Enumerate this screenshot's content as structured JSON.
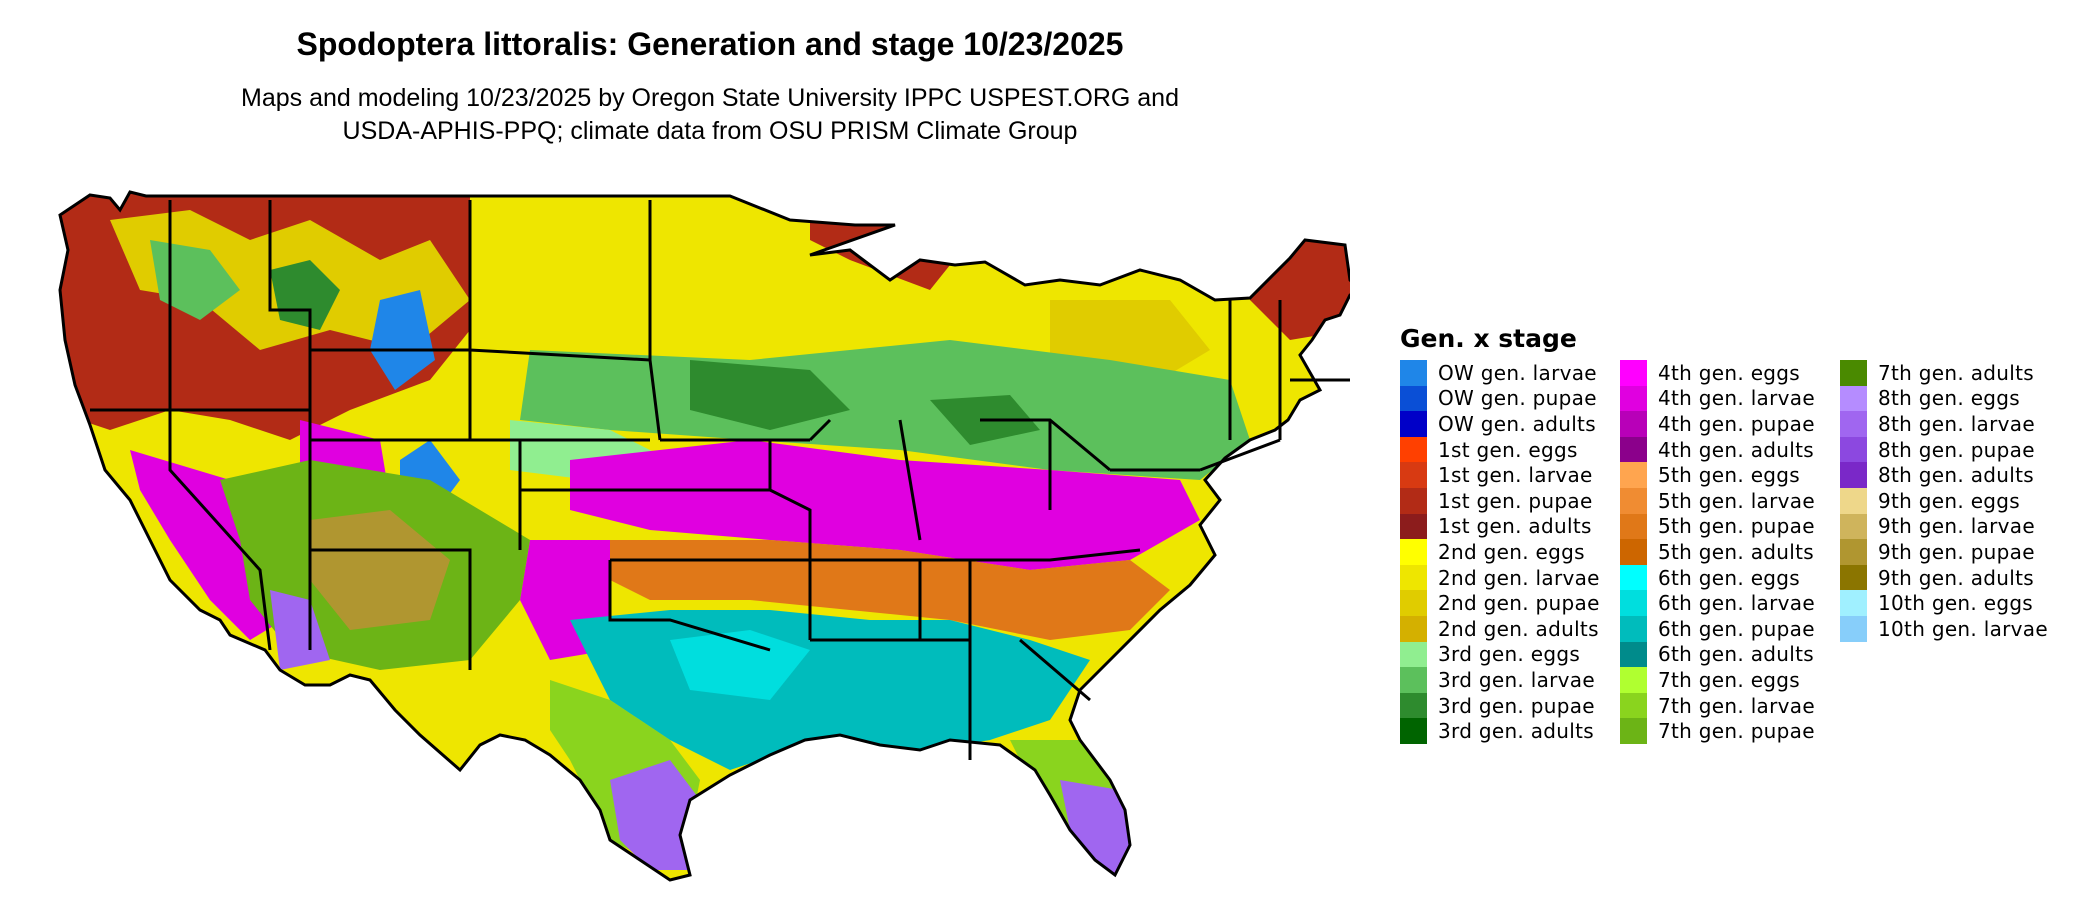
{
  "title": "Spodoptera littoralis: Generation and stage 10/23/2025",
  "subtitle_line1": "Maps and modeling 10/23/2025 by Oregon State University IPPC USPEST.ORG and",
  "subtitle_line2": "USDA-APHIS-PPQ; climate data from OSU PRISM Climate Group",
  "legend": {
    "title": "Gen. x stage",
    "items": [
      {
        "label": "OW gen. larvae",
        "color": "#1f86e8"
      },
      {
        "label": "OW gen. pupae",
        "color": "#0a4fd6"
      },
      {
        "label": "OW gen. adults",
        "color": "#0000c8"
      },
      {
        "label": "1st gen. eggs",
        "color": "#ff4000"
      },
      {
        "label": "1st gen. larvae",
        "color": "#d83a12"
      },
      {
        "label": "1st gen. pupae",
        "color": "#b22b16"
      },
      {
        "label": "1st gen. adults",
        "color": "#8c1c1c"
      },
      {
        "label": "2nd gen. eggs",
        "color": "#ffff00"
      },
      {
        "label": "2nd gen. larvae",
        "color": "#eee600"
      },
      {
        "label": "2nd gen. pupae",
        "color": "#e0cc00"
      },
      {
        "label": "2nd gen. adults",
        "color": "#d4b000"
      },
      {
        "label": "3rd gen. eggs",
        "color": "#90ee90"
      },
      {
        "label": "3rd gen. larvae",
        "color": "#5cc05c"
      },
      {
        "label": "3rd gen. pupae",
        "color": "#2e8b2e"
      },
      {
        "label": "3rd gen. adults",
        "color": "#006400"
      },
      {
        "label": "4th gen. eggs",
        "color": "#ff00ff"
      },
      {
        "label": "4th gen. larvae",
        "color": "#e000e0"
      },
      {
        "label": "4th gen. pupae",
        "color": "#b800b8"
      },
      {
        "label": "4th gen. adults",
        "color": "#8b008b"
      },
      {
        "label": "5th gen. eggs",
        "color": "#ffa54f"
      },
      {
        "label": "5th gen. larvae",
        "color": "#f08c32"
      },
      {
        "label": "5th gen. pupae",
        "color": "#e07818"
      },
      {
        "label": "5th gen. adults",
        "color": "#cd6600"
      },
      {
        "label": "6th gen. eggs",
        "color": "#00ffff"
      },
      {
        "label": "6th gen. larvae",
        "color": "#00dede"
      },
      {
        "label": "6th gen. pupae",
        "color": "#00bcbc"
      },
      {
        "label": "6th gen. adults",
        "color": "#008b8b"
      },
      {
        "label": "7th gen. eggs",
        "color": "#b0ff30"
      },
      {
        "label": "7th gen. larvae",
        "color": "#8ad41e"
      },
      {
        "label": "7th gen. pupae",
        "color": "#6cb416"
      },
      {
        "label": "7th gen. adults",
        "color": "#4a8a00"
      },
      {
        "label": "8th gen. eggs",
        "color": "#b58cff"
      },
      {
        "label": "8th gen. larvae",
        "color": "#a066f0"
      },
      {
        "label": "8th gen. pupae",
        "color": "#8c48e0"
      },
      {
        "label": "8th gen. adults",
        "color": "#7a28c8"
      },
      {
        "label": "9th gen. eggs",
        "color": "#eed78a"
      },
      {
        "label": "9th gen. larvae",
        "color": "#cfb45c"
      },
      {
        "label": "9th gen. pupae",
        "color": "#b09630"
      },
      {
        "label": "9th gen. adults",
        "color": "#8b7500"
      },
      {
        "label": "10th gen. eggs",
        "color": "#a0f0ff"
      },
      {
        "label": "10th gen. larvae",
        "color": "#87cefa"
      }
    ]
  }
}
